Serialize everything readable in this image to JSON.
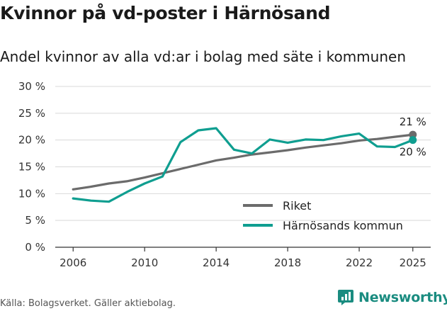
{
  "title": "Kvinnor på vd-poster i Härnösand",
  "subtitle": "Andel kvinnor av alla vd:ar i bolag med säte i kommunen",
  "source": "Källa: Bolagsverket. Gäller aktiebolag.",
  "brand": "Newsworthy",
  "colors": {
    "riket": "#6b6b6b",
    "harnosand": "#0f9e90",
    "brand": "#1a8c80",
    "grid": "#d9d9d9"
  },
  "chart_data": {
    "type": "line",
    "x": [
      2006,
      2007,
      2008,
      2009,
      2010,
      2011,
      2012,
      2013,
      2014,
      2015,
      2016,
      2017,
      2018,
      2019,
      2020,
      2021,
      2022,
      2023,
      2024,
      2025
    ],
    "series": [
      {
        "name": "Riket",
        "color": "#6b6b6b",
        "values": [
          10.8,
          11.3,
          11.9,
          12.3,
          13.0,
          13.8,
          14.6,
          15.4,
          16.2,
          16.7,
          17.3,
          17.7,
          18.1,
          18.6,
          19.0,
          19.4,
          19.9,
          20.2,
          20.6,
          21.0
        ],
        "end_label": "21 %"
      },
      {
        "name": "Härnösands kommun",
        "color": "#0f9e90",
        "values": [
          9.1,
          8.7,
          8.5,
          10.3,
          11.9,
          13.2,
          19.6,
          21.8,
          22.2,
          18.2,
          17.5,
          20.1,
          19.5,
          20.1,
          20.0,
          20.7,
          21.2,
          18.8,
          18.7,
          20.0
        ],
        "end_label": "20 %"
      }
    ],
    "ylim": [
      0,
      30
    ],
    "yticks": [
      0,
      5,
      10,
      15,
      20,
      25,
      30
    ],
    "ytick_labels": [
      "0 %",
      "5 %",
      "10 %",
      "15 %",
      "20 %",
      "25 %",
      "30 %"
    ],
    "xticks": [
      2006,
      2010,
      2014,
      2018,
      2022,
      2025
    ],
    "xtick_labels": [
      "2006",
      "2010",
      "2014",
      "2018",
      "2022",
      "2025"
    ],
    "xlabel": "",
    "ylabel": "",
    "legend": [
      "Riket",
      "Härnösands kommun"
    ],
    "legend_position": "bottom-right",
    "grid": true
  }
}
